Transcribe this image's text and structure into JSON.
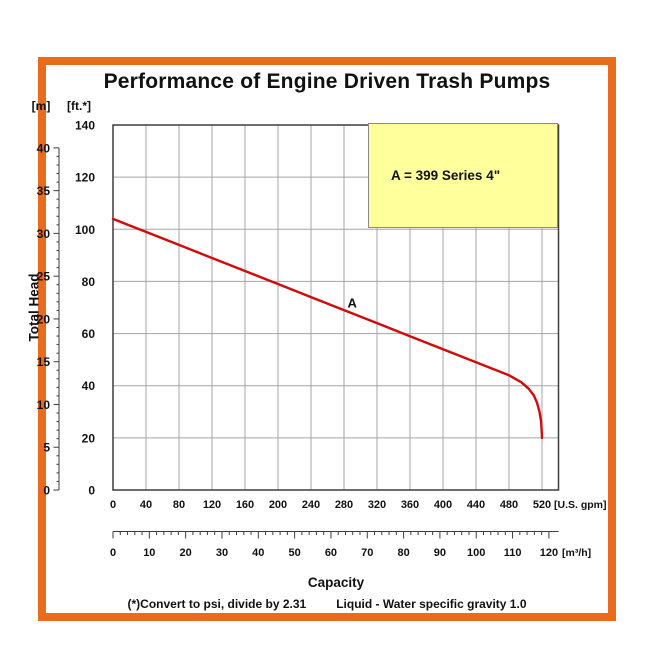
{
  "title": "Performance of Engine Driven Trash Pumps",
  "y_axis": {
    "unit_m": "[m]",
    "unit_ft": "[ft.*]",
    "title": "Total Head",
    "ft_ticks": [
      0,
      20,
      40,
      60,
      80,
      100,
      120,
      140
    ],
    "m_ticks": [
      0,
      5,
      10,
      15,
      20,
      25,
      30,
      35,
      40
    ]
  },
  "x_axis": {
    "title": "Capacity",
    "unit_gpm": "[U.S. gpm]",
    "unit_m3h": "[m³/h]",
    "gpm_ticks": [
      0,
      40,
      80,
      120,
      160,
      200,
      240,
      280,
      320,
      360,
      400,
      440,
      480,
      520
    ],
    "m3h_ticks": [
      0,
      10,
      20,
      30,
      40,
      50,
      60,
      70,
      80,
      90,
      100,
      110,
      120
    ]
  },
  "legend": {
    "text": "A = 399 Series 4\""
  },
  "footer": {
    "left": "(*)Convert to psi, divide by 2.31",
    "right": "Liquid - Water specific gravity 1.0"
  },
  "chart_data": {
    "type": "line",
    "title": "Performance of Engine Driven Trash Pumps",
    "xlabel": "Capacity",
    "ylabel": "Total Head",
    "x_units": [
      "U.S. gpm",
      "m³/h"
    ],
    "y_units": [
      "ft",
      "m"
    ],
    "xlim_gpm": [
      0,
      540
    ],
    "ylim_ft": [
      0,
      140
    ],
    "gpm_per_m3h": 4.4029,
    "ft_per_m": 3.2808,
    "grid": true,
    "legend_position": "top-right",
    "series": [
      {
        "name": "A",
        "legend": "A = 399 Series 4\"",
        "color": "#D20A0A",
        "points_gpm_ft": [
          [
            0,
            104
          ],
          [
            40,
            99
          ],
          [
            80,
            94
          ],
          [
            120,
            89
          ],
          [
            160,
            84
          ],
          [
            200,
            79
          ],
          [
            240,
            74
          ],
          [
            280,
            69
          ],
          [
            320,
            64
          ],
          [
            360,
            59
          ],
          [
            400,
            54
          ],
          [
            440,
            49
          ],
          [
            480,
            44
          ],
          [
            495,
            41.3
          ],
          [
            504,
            38.8
          ],
          [
            510,
            36.3
          ],
          [
            514,
            33.5
          ],
          [
            517,
            30
          ],
          [
            519,
            26
          ],
          [
            520,
            20
          ]
        ]
      }
    ],
    "annotations": [
      {
        "text": "A",
        "gpm": 290,
        "ft": 70
      }
    ]
  },
  "colors": {
    "frame": "#E96B1E",
    "curve": "#D20A0A",
    "legend_bg": "#FFFF9B",
    "grid": "#A5A5A5",
    "plot_border": "#3C3C3C",
    "text": "#111111"
  }
}
